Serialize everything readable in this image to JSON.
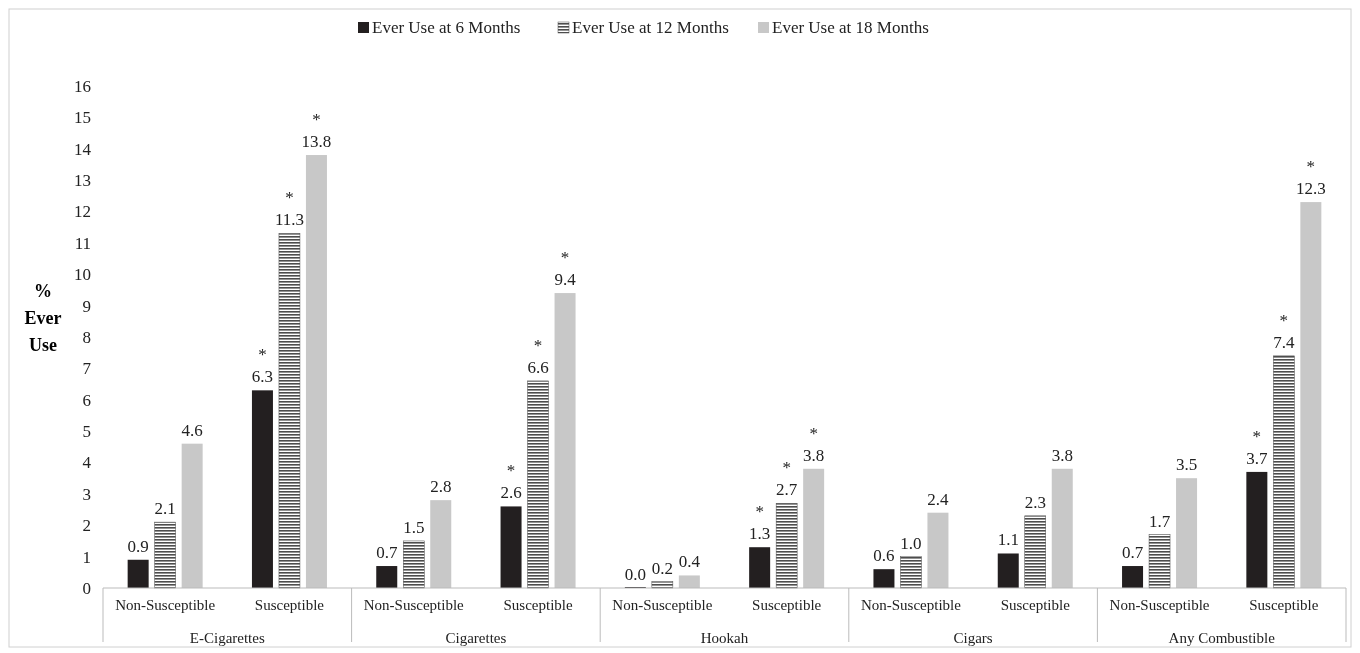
{
  "chart_data": {
    "type": "bar",
    "ylabel": "% Ever Use",
    "categories": [
      "Non-Susceptible",
      "Susceptible",
      "Non-Susceptible",
      "Susceptible",
      "Non-Susceptible",
      "Susceptible",
      "Non-Susceptible",
      "Susceptible",
      "Non-Susceptible",
      "Susceptible"
    ],
    "annotations": [
      "E-Cigarettes",
      "Cigarettes",
      "Hookah",
      "Cigars",
      "Any Combustible"
    ],
    "ylim": [
      0,
      16
    ],
    "yticks": [
      0,
      1,
      2,
      3,
      4,
      5,
      6,
      7,
      8,
      9,
      10,
      11,
      12,
      13,
      14,
      15,
      16
    ],
    "grid": false,
    "legend": "top",
    "series": [
      {
        "name": "Ever Use at 6 Months",
        "color": "#231f20",
        "values": [
          0.9,
          6.3,
          0.7,
          2.6,
          0.0,
          1.3,
          0.6,
          1.1,
          0.7,
          3.7
        ],
        "value_labels": [
          "0.9",
          "*\n6.3",
          "0.7",
          "*\n2.6",
          "0.0",
          "*\n1.3",
          "0.6",
          "1.1",
          "0.7",
          "*\n3.7"
        ]
      },
      {
        "name": "Ever Use at 12 Months",
        "color": "#4d4d4d",
        "values": [
          2.1,
          11.3,
          1.5,
          6.6,
          0.2,
          2.7,
          1.0,
          2.3,
          1.7,
          7.4
        ],
        "value_labels": [
          "2.1",
          "*\n11.3",
          "1.5",
          "*\n6.6",
          "0.2",
          "*\n2.7",
          "1.0",
          "2.3",
          "1.7",
          "*\n7.4"
        ]
      },
      {
        "name": "Ever Use at 18 Months",
        "color": "#c8c8c8",
        "values": [
          4.6,
          13.8,
          2.8,
          9.4,
          0.4,
          3.8,
          2.4,
          3.8,
          3.5,
          12.3
        ],
        "value_labels": [
          "4.6",
          "*\n13.8",
          "2.8",
          "*\n9.4",
          "0.4",
          "*\n3.8",
          "2.4",
          "3.8",
          "3.5",
          "*\n12.3"
        ]
      }
    ]
  }
}
